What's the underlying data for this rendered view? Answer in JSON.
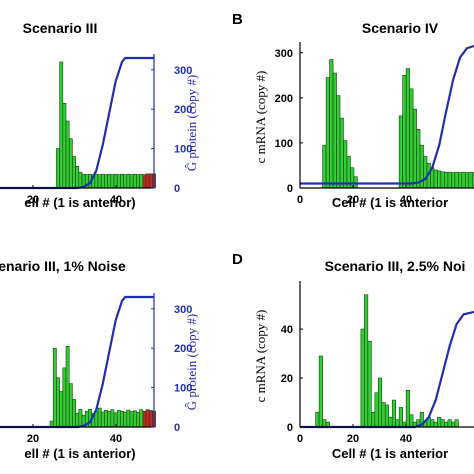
{
  "colors": {
    "bar_green": "#33cc33",
    "bar_red": "#cc2222",
    "bar_edge": "#114411",
    "line_blue": "#1f2fb0"
  },
  "chart_data": [
    {
      "panel_letter": "",
      "title": "Scenario III",
      "type": "bar",
      "xlabel": "ell # (1 is anterior)",
      "ylabel_right": "Ĝ protein (copy #)",
      "xticks": [
        "20",
        "40"
      ],
      "yticks_right": [
        "0",
        "100",
        "200",
        "300"
      ],
      "xlim": [
        0,
        50
      ],
      "ylim": [
        0,
        330
      ],
      "x": [
        1,
        2,
        3,
        4,
        5,
        6,
        7,
        8,
        9,
        10,
        11,
        12,
        13,
        14,
        15,
        16,
        17,
        18,
        19,
        20,
        21,
        22,
        23,
        24,
        25,
        26,
        27,
        28,
        29,
        30,
        31,
        32,
        33,
        34,
        35,
        36,
        37,
        38,
        39,
        40,
        41,
        42,
        43,
        44,
        45,
        46,
        47,
        48,
        49,
        50
      ],
      "values": [
        0,
        0,
        0,
        0,
        0,
        0,
        0,
        0,
        0,
        0,
        0,
        0,
        0,
        0,
        0,
        0,
        0,
        0,
        0,
        100,
        320,
        215,
        170,
        125,
        80,
        55,
        40,
        35,
        34,
        35,
        34,
        35,
        34,
        35,
        34,
        35,
        34,
        35,
        34,
        35,
        34,
        35,
        34,
        35,
        34,
        35,
        34,
        36,
        36,
        36
      ],
      "bar_colors": [
        "g",
        "g",
        "g",
        "g",
        "g",
        "g",
        "g",
        "g",
        "g",
        "g",
        "g",
        "g",
        "g",
        "g",
        "g",
        "g",
        "g",
        "g",
        "g",
        "g",
        "g",
        "g",
        "g",
        "g",
        "g",
        "g",
        "g",
        "g",
        "g",
        "g",
        "g",
        "g",
        "g",
        "g",
        "g",
        "g",
        "g",
        "g",
        "g",
        "g",
        "g",
        "g",
        "g",
        "g",
        "g",
        "g",
        "r",
        "r",
        "r",
        "r"
      ],
      "line": {
        "x": [
          0,
          26,
          28,
          30,
          32,
          34,
          36,
          38,
          40,
          41,
          42,
          44,
          50
        ],
        "y": [
          0,
          0,
          3,
          12,
          45,
          110,
          190,
          270,
          320,
          330,
          330,
          330,
          330
        ]
      }
    },
    {
      "panel_letter": "B",
      "title": "Scenario IV",
      "type": "bar",
      "xlabel": "Cell # (1 is anterior",
      "ylabel_left": "c mRNA (copy #)",
      "xticks": [
        "0",
        "20",
        "40"
      ],
      "yticks_left": [
        "0",
        "100",
        "200",
        "300"
      ],
      "xlim": [
        0,
        50
      ],
      "ylim": [
        0,
        315
      ],
      "x": [
        1,
        2,
        3,
        4,
        5,
        6,
        7,
        8,
        9,
        10,
        11,
        12,
        13,
        14,
        15,
        16,
        17,
        18,
        19,
        20,
        21,
        22,
        23,
        24,
        25,
        26,
        27,
        28,
        29,
        30,
        31,
        32,
        33,
        34,
        35,
        36,
        37,
        38,
        39,
        40,
        41,
        42,
        43,
        44,
        45,
        46,
        47,
        48,
        49,
        50
      ],
      "values": [
        0,
        0,
        0,
        0,
        0,
        0,
        0,
        0,
        0,
        0,
        0,
        0,
        0,
        0,
        0,
        0,
        0,
        0,
        0,
        0,
        0,
        0,
        0,
        0,
        0,
        0,
        0,
        0,
        0,
        95,
        245,
        285,
        255,
        205,
        155,
        105,
        70,
        45,
        25,
        0,
        0,
        0,
        0,
        0,
        0,
        0,
        0,
        0,
        0,
        0
      ],
      "values_b": [
        0,
        0,
        0,
        0,
        0,
        0,
        0,
        0,
        0,
        0,
        0,
        0,
        0,
        0,
        0,
        0,
        0,
        0,
        0,
        0,
        0,
        0,
        0,
        0,
        0,
        0,
        0,
        0,
        0,
        0,
        0,
        0,
        0,
        0,
        0,
        0,
        0,
        0,
        0,
        0,
        0,
        0,
        0,
        0,
        0,
        0,
        0,
        0,
        0,
        0
      ],
      "bars": [
        {
          "x": 7,
          "v": 95
        },
        {
          "x": 8,
          "v": 245
        },
        {
          "x": 9,
          "v": 285
        },
        {
          "x": 10,
          "v": 255
        },
        {
          "x": 11,
          "v": 205
        },
        {
          "x": 12,
          "v": 155
        },
        {
          "x": 13,
          "v": 105
        },
        {
          "x": 14,
          "v": 70
        },
        {
          "x": 15,
          "v": 45
        },
        {
          "x": 16,
          "v": 25
        },
        {
          "x": 29,
          "v": 160
        },
        {
          "x": 30,
          "v": 250
        },
        {
          "x": 31,
          "v": 265
        },
        {
          "x": 32,
          "v": 220
        },
        {
          "x": 33,
          "v": 175
        },
        {
          "x": 34,
          "v": 130
        },
        {
          "x": 35,
          "v": 95
        },
        {
          "x": 36,
          "v": 70
        },
        {
          "x": 37,
          "v": 55
        },
        {
          "x": 38,
          "v": 45
        },
        {
          "x": 39,
          "v": 40
        },
        {
          "x": 40,
          "v": 38
        },
        {
          "x": 41,
          "v": 36
        },
        {
          "x": 42,
          "v": 35
        },
        {
          "x": 43,
          "v": 35
        },
        {
          "x": 44,
          "v": 34
        },
        {
          "x": 45,
          "v": 35
        },
        {
          "x": 46,
          "v": 34
        },
        {
          "x": 47,
          "v": 35
        },
        {
          "x": 48,
          "v": 34
        },
        {
          "x": 49,
          "v": 35
        },
        {
          "x": 50,
          "v": 34
        }
      ],
      "line": {
        "x": [
          0,
          30,
          32,
          34,
          36,
          38,
          40,
          42,
          44,
          46,
          48,
          50
        ],
        "y": [
          10,
          10,
          10,
          12,
          20,
          45,
          95,
          170,
          240,
          290,
          310,
          315
        ]
      }
    },
    {
      "panel_letter": "",
      "title": "enario III, 1% Noise",
      "type": "bar",
      "xlabel": "ell # (1 is anterior)",
      "ylabel_right": "Ĝ protein (copy #)",
      "xticks": [
        "20",
        "40"
      ],
      "yticks_right": [
        "0",
        "100",
        "200",
        "300"
      ],
      "xlim": [
        0,
        50
      ],
      "ylim": [
        0,
        330
      ],
      "bars": [
        {
          "x": 18,
          "v": 15
        },
        {
          "x": 19,
          "v": 200
        },
        {
          "x": 20,
          "v": 125
        },
        {
          "x": 21,
          "v": 90
        },
        {
          "x": 22,
          "v": 150
        },
        {
          "x": 23,
          "v": 205
        },
        {
          "x": 24,
          "v": 110
        },
        {
          "x": 25,
          "v": 70
        },
        {
          "x": 26,
          "v": 35
        },
        {
          "x": 27,
          "v": 45
        },
        {
          "x": 28,
          "v": 30
        },
        {
          "x": 29,
          "v": 40
        },
        {
          "x": 30,
          "v": 45
        },
        {
          "x": 31,
          "v": 35
        },
        {
          "x": 32,
          "v": 40
        },
        {
          "x": 33,
          "v": 48
        },
        {
          "x": 34,
          "v": 38
        },
        {
          "x": 35,
          "v": 42
        },
        {
          "x": 36,
          "v": 40
        },
        {
          "x": 37,
          "v": 44
        },
        {
          "x": 38,
          "v": 36
        },
        {
          "x": 39,
          "v": 42
        },
        {
          "x": 40,
          "v": 40
        },
        {
          "x": 41,
          "v": 38
        },
        {
          "x": 42,
          "v": 43
        },
        {
          "x": 43,
          "v": 39
        },
        {
          "x": 44,
          "v": 41
        },
        {
          "x": 45,
          "v": 37
        },
        {
          "x": 46,
          "v": 44
        },
        {
          "x": 47,
          "v": 40,
          "c": "r"
        },
        {
          "x": 48,
          "v": 44,
          "c": "r"
        },
        {
          "x": 49,
          "v": 42,
          "c": "r"
        },
        {
          "x": 50,
          "v": 40,
          "c": "r"
        }
      ],
      "line": {
        "x": [
          0,
          26,
          28,
          30,
          32,
          34,
          36,
          38,
          40,
          41,
          42,
          44,
          50
        ],
        "y": [
          0,
          0,
          3,
          12,
          45,
          110,
          190,
          270,
          320,
          330,
          330,
          330,
          330
        ]
      }
    },
    {
      "panel_letter": "D",
      "title": "Scenario III, 2.5% Noi",
      "type": "bar",
      "xlabel": "Cell # (1 is anterior",
      "ylabel_left": "c mRNA (copy #)",
      "xticks": [
        "0",
        "20",
        "40"
      ],
      "yticks_left": [
        "0",
        "20",
        "40"
      ],
      "xlim": [
        0,
        50
      ],
      "ylim": [
        0,
        58
      ],
      "bars": [
        {
          "x": 5,
          "v": 6
        },
        {
          "x": 6,
          "v": 29
        },
        {
          "x": 7,
          "v": 3
        },
        {
          "x": 8,
          "v": 2
        },
        {
          "x": 18,
          "v": 40
        },
        {
          "x": 19,
          "v": 54
        },
        {
          "x": 20,
          "v": 35
        },
        {
          "x": 21,
          "v": 6
        },
        {
          "x": 22,
          "v": 14
        },
        {
          "x": 23,
          "v": 20
        },
        {
          "x": 24,
          "v": 10
        },
        {
          "x": 25,
          "v": 9
        },
        {
          "x": 26,
          "v": 4
        },
        {
          "x": 27,
          "v": 11
        },
        {
          "x": 28,
          "v": 3
        },
        {
          "x": 29,
          "v": 8
        },
        {
          "x": 30,
          "v": 2
        },
        {
          "x": 31,
          "v": 15
        },
        {
          "x": 32,
          "v": 5
        },
        {
          "x": 33,
          "v": 2
        },
        {
          "x": 34,
          "v": 3
        },
        {
          "x": 35,
          "v": 6
        },
        {
          "x": 36,
          "v": 2
        },
        {
          "x": 37,
          "v": 4
        },
        {
          "x": 38,
          "v": 3
        },
        {
          "x": 39,
          "v": 2
        },
        {
          "x": 40,
          "v": 4
        },
        {
          "x": 41,
          "v": 3
        },
        {
          "x": 42,
          "v": 2
        },
        {
          "x": 43,
          "v": 3
        },
        {
          "x": 44,
          "v": 2
        },
        {
          "x": 45,
          "v": 3
        }
      ],
      "line": {
        "x": [
          0,
          33,
          35,
          37,
          39,
          41,
          43,
          45,
          47,
          50
        ],
        "y": [
          0,
          0,
          1,
          4,
          11,
          22,
          33,
          42,
          46,
          47
        ]
      }
    }
  ]
}
